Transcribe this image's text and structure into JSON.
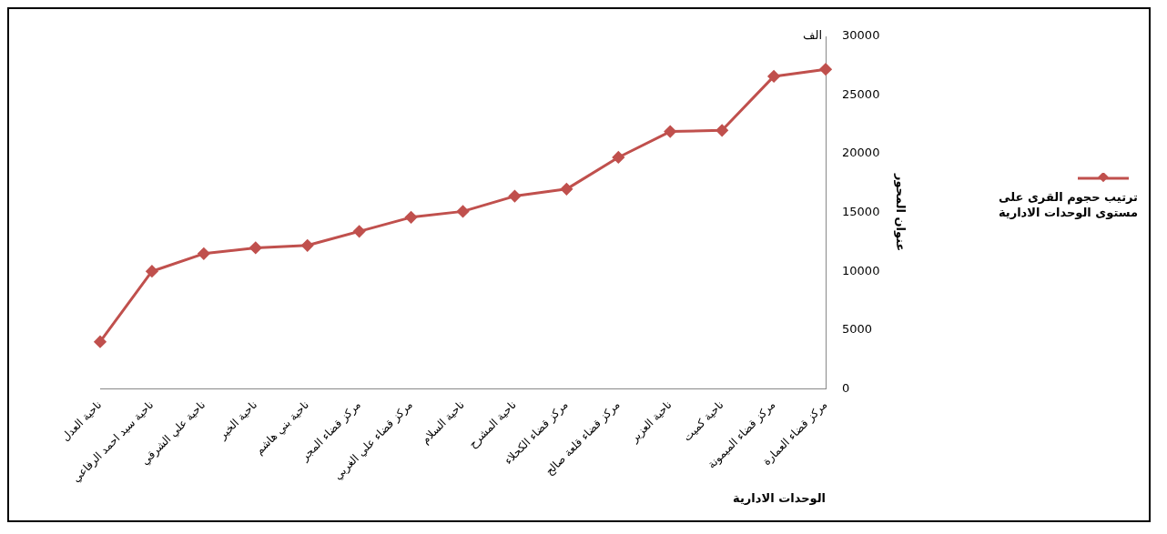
{
  "chart_data": {
    "type": "line",
    "categories": [
      "ناحية العدل",
      "ناحية سيد احمد الرفاعي",
      "ناحية علي الشرقي",
      "ناحية الخير",
      "ناحية بني هاشم",
      "مركز قضاء المجر",
      "مركز قضاء علي الغربي",
      "ناحية السلام",
      "ناحية المشرح",
      "مركز قضاء الكحلاء",
      "مركز قضاء قلعة صالح",
      "ناحية العزير",
      "ناحية كميت",
      "مركز قضاء الميمونة",
      "مركز قضاء العمارة"
    ],
    "series": [
      {
        "name": "ترتيب حجوم القرى على مستوى الوحدات الادارية",
        "color": "#c0504d",
        "values": [
          4000,
          10000,
          11500,
          12000,
          12200,
          13400,
          14600,
          15100,
          16400,
          17000,
          19700,
          21900,
          22000,
          26600,
          27200
        ]
      }
    ],
    "xlabel": "الوحدات الادارية",
    "ylabel": "عنوان المحور",
    "annotations": [
      "الف"
    ],
    "ylim": [
      0,
      30000
    ],
    "yticks": [
      0,
      5000,
      10000,
      15000,
      20000,
      25000,
      30000
    ],
    "grid": false,
    "legend": "right",
    "marker": "diamond",
    "line_style": "solid"
  }
}
